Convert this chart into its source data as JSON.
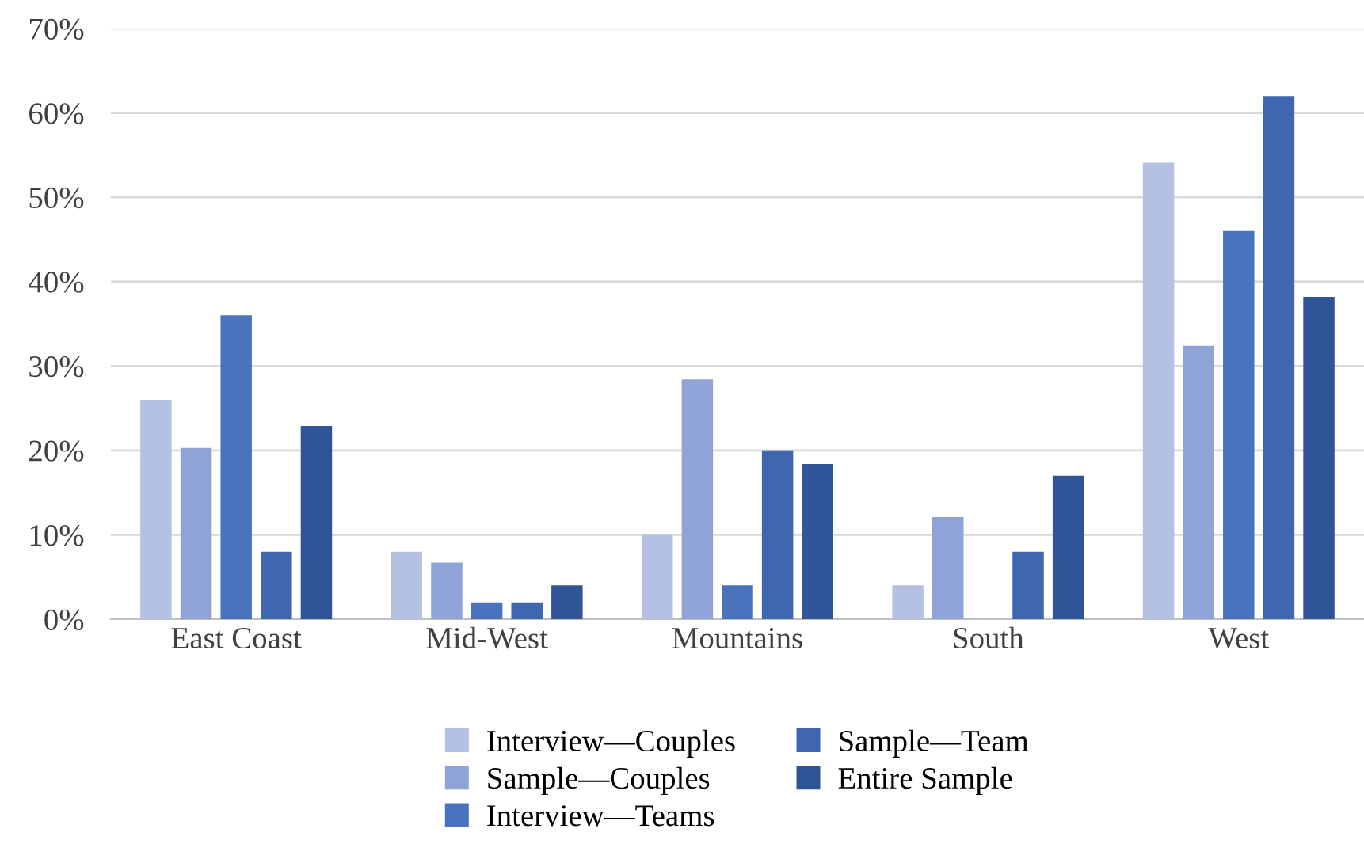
{
  "chart_data": {
    "type": "bar",
    "categories": [
      "East Coast",
      "Mid-West",
      "Mountains",
      "South",
      "West"
    ],
    "series": [
      {
        "name": "Interview—Couples",
        "color": "#b4c1e2",
        "values": [
          26,
          8,
          10,
          4,
          54.1
        ]
      },
      {
        "name": "Sample—Couples",
        "color": "#8fa3d6",
        "values": [
          20.3,
          6.7,
          28.4,
          12.1,
          32.4
        ]
      },
      {
        "name": "Interview—Teams",
        "color": "#4a73be",
        "values": [
          36,
          2,
          4,
          0,
          46
        ]
      },
      {
        "name": "Sample—Team",
        "color": "#3f67b0",
        "values": [
          8,
          2,
          20,
          8,
          62
        ]
      },
      {
        "name": "Entire Sample",
        "color": "#2f5597",
        "values": [
          22.9,
          4,
          18.4,
          17,
          38.2
        ]
      }
    ],
    "ylim": [
      0,
      70
    ],
    "yticks": [
      {
        "value": 0,
        "label": "0%"
      },
      {
        "value": 10,
        "label": "10%"
      },
      {
        "value": 20,
        "label": "20%"
      },
      {
        "value": 30,
        "label": "30%"
      },
      {
        "value": 40,
        "label": "40%"
      },
      {
        "value": 50,
        "label": "50%"
      },
      {
        "value": 60,
        "label": "60%"
      },
      {
        "value": 70,
        "label": "70%"
      }
    ],
    "grid": "y",
    "legend": "bottom"
  }
}
